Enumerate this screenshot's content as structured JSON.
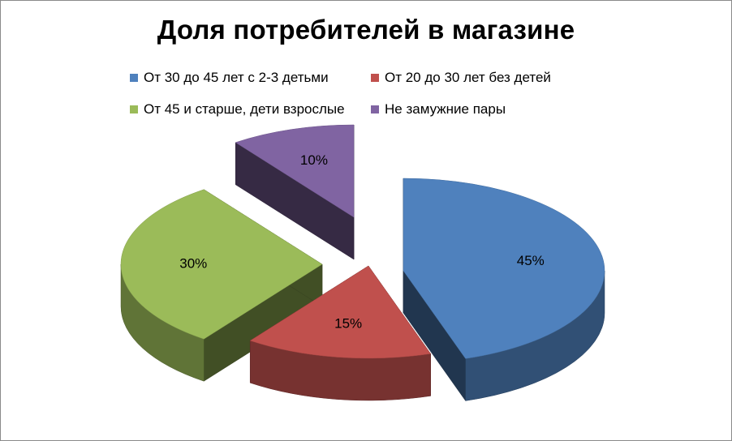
{
  "chart_data": {
    "type": "pie",
    "title": "Доля потребителей в магазине",
    "legend_position": "top",
    "exploded": true,
    "three_d": true,
    "slices": [
      {
        "name": "От 30 до 45 лет с 2-3 детьми",
        "value": 45,
        "label": "45%",
        "color": "#4f81bd"
      },
      {
        "name": "От 20 до 30 лет без детей",
        "value": 15,
        "label": "15%",
        "color": "#c0504d"
      },
      {
        "name": "От 45 и старше, дети взрослые",
        "value": 30,
        "label": "30%",
        "color": "#9bbb59"
      },
      {
        "name": "Не замужние пары",
        "value": 10,
        "label": "10%",
        "color": "#8064a2"
      }
    ]
  }
}
